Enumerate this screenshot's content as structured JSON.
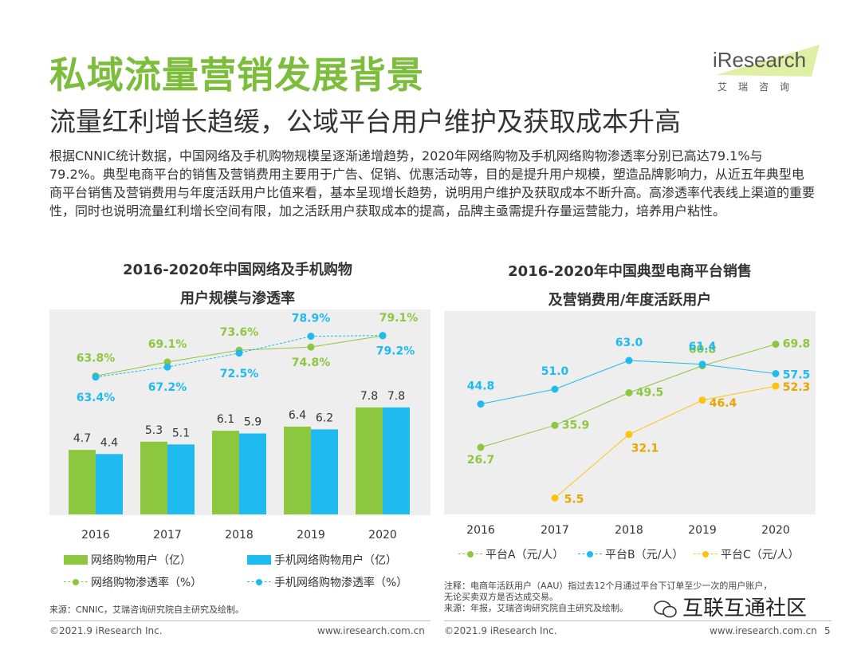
{
  "header": {
    "title": "私域流量营销发展背景",
    "subtitle": "流量红利增长趋缓，公域平台用户维护及获取成本升高"
  },
  "logo": {
    "text": "iResearch",
    "cn": "艾瑞咨询"
  },
  "intro": "根据CNNIC统计数据，中国网络及手机购物规模呈逐渐递增趋势，2020年网络购物及手机网络购物渗透率分别已高达79.1%与79.2%。典型电商平台的销售及营销费用主要用于广告、促销、优惠活动等，目的是提升用户规模，塑造品牌影响力，从近五年典型电商平台销售及营销费用与年度活跃用户比值来看，基本呈现增长趋势，说明用户维护及获取成本不断升高。高渗透率代表线上渠道的重要性，同时也说明流量红利增长空间有限，加之活跃用户获取成本的提高，品牌主亟需提升存量运营能力，培养用户粘性。",
  "colors": {
    "green": "#8dc63f",
    "blue": "#1fbaf0",
    "yellow": "#ffc20e",
    "title_green": "#7dbd3c"
  },
  "chart_data": [
    {
      "type": "bar",
      "title_line1": "2016-2020年中国网络及手机购物",
      "title_line2": "用户规模与渗透率",
      "categories": [
        "2016",
        "2017",
        "2018",
        "2019",
        "2020"
      ],
      "bar_series": [
        {
          "name": "网络购物用户（亿）",
          "values": [
            4.7,
            5.3,
            6.1,
            6.4,
            7.8
          ]
        },
        {
          "name": "手机网络购物用户（亿）",
          "values": [
            4.4,
            5.1,
            5.9,
            6.2,
            7.8
          ]
        }
      ],
      "line_series": [
        {
          "name": "网络购物渗透率（%）",
          "values": [
            63.8,
            69.1,
            73.6,
            74.8,
            79.1
          ],
          "labels": [
            "63.8%",
            "69.1%",
            "73.6%",
            "74.8%",
            "79.1%"
          ]
        },
        {
          "name": "手机网络购物渗透率（%）",
          "values": [
            63.4,
            67.2,
            72.5,
            78.9,
            79.2
          ],
          "labels": [
            "63.4%",
            "67.2%",
            "72.5%",
            "78.9%",
            "79.2%"
          ]
        }
      ]
    },
    {
      "type": "line",
      "title_line1": "2016-2020年中国典型电商平台销售",
      "title_line2": "及营销费用/年度活跃用户",
      "x": [
        "2016",
        "2017",
        "2018",
        "2019",
        "2020"
      ],
      "series": [
        {
          "name": "平台A（元/人）",
          "values": [
            26.7,
            35.9,
            49.5,
            60.8,
            69.8
          ]
        },
        {
          "name": "平台B（元/人）",
          "values": [
            44.8,
            51.0,
            63.0,
            61.4,
            57.5
          ]
        },
        {
          "name": "平台C（元/人）",
          "values": [
            null,
            5.5,
            32.1,
            46.4,
            52.3
          ]
        }
      ]
    }
  ],
  "sources": {
    "left": "来源：CNNIC，艾瑞咨询研究院自主研究及绘制。",
    "right_note1": "注释：电商年活跃用户（AAU）指过去12个月通过平台下订单至少一次的用户账户，",
    "right_note2": "无论买卖双方是否达成交易。",
    "right_source": "来源：年报，艾瑞咨询研究院自主研究及绘制。"
  },
  "footer": {
    "left_copy": "©2021.9 iResearch Inc.",
    "left_url": "www.iresearch.com.cn",
    "right_copy": "©2021.9 iResearch Inc.",
    "right_url": "www.iresearch.com.cn",
    "page_number": "5"
  },
  "watermark": "互联互通社区"
}
